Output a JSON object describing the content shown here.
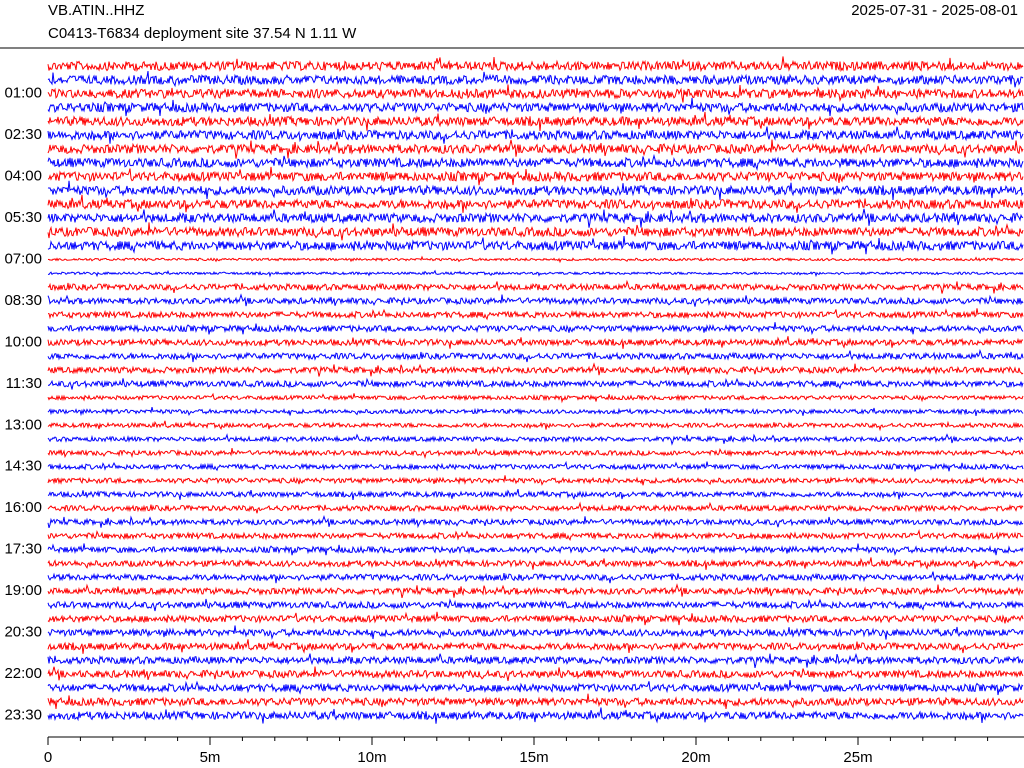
{
  "chart_data": {
    "type": "helicorder",
    "title": "VB.ATIN..HHZ",
    "subtitle": "C0413-T6834 deployment site  37.54 N 1.11 W",
    "date_range": "2025-07-31 - 2025-08-01",
    "row_labels": [
      "01:00",
      "02:30",
      "04:00",
      "05:30",
      "07:00",
      "08:30",
      "10:00",
      "11:30",
      "13:00",
      "14:30",
      "16:00",
      "17:30",
      "19:00",
      "20:30",
      "22:00",
      "23:30"
    ],
    "colors": [
      "#ff0000",
      "#0000ff"
    ],
    "xlim": [
      0,
      30
    ],
    "xticks": [
      0,
      {
        "value": 5,
        "label": "5m"
      },
      {
        "value": 10,
        "label": "10m"
      },
      {
        "value": 15,
        "label": "15m"
      },
      {
        "value": 20,
        "label": "20m"
      },
      {
        "value": 25,
        "label": "25m"
      }
    ]
  }
}
